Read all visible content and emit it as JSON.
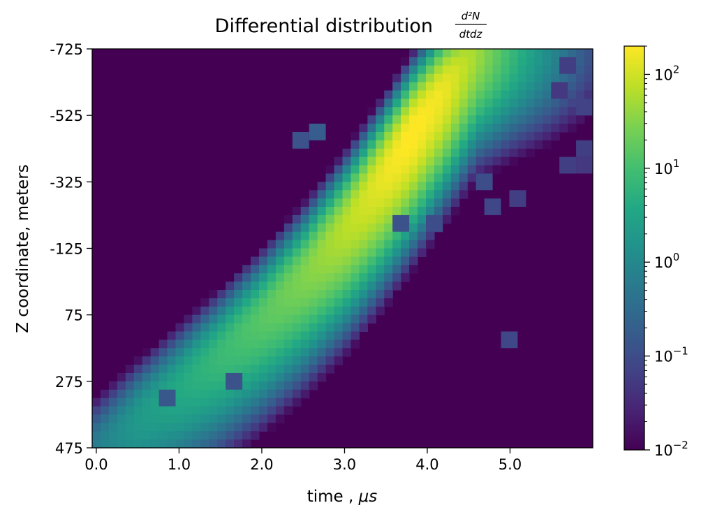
{
  "chart_data": {
    "type": "heatmap",
    "title": "Differential distribution",
    "title_fraction": {
      "numerator": "d²N",
      "denominator": "dtdz"
    },
    "xlabel_text": "time , ",
    "xlabel_unit": "μs",
    "ylabel": "Z coordinate, meters",
    "x_range": [
      -0.05,
      6.0
    ],
    "y_range": [
      -725,
      475
    ],
    "y_axis_inverted": true,
    "x_ticks": [
      {
        "value": 0.0,
        "label": "0.0"
      },
      {
        "value": 1.0,
        "label": "1.0"
      },
      {
        "value": 2.0,
        "label": "2.0"
      },
      {
        "value": 3.0,
        "label": "3.0"
      },
      {
        "value": 4.0,
        "label": "4.0"
      },
      {
        "value": 5.0,
        "label": "5.0"
      }
    ],
    "y_ticks": [
      {
        "value": -725,
        "label": "-725"
      },
      {
        "value": -525,
        "label": "-525"
      },
      {
        "value": -325,
        "label": "-325"
      },
      {
        "value": -125,
        "label": "-125"
      },
      {
        "value": 75,
        "label": "75"
      },
      {
        "value": 275,
        "label": "275"
      },
      {
        "value": 475,
        "label": "475"
      }
    ],
    "colorbar": {
      "colormap": "viridis",
      "scale": "log",
      "range": [
        0.01,
        200
      ],
      "ticks": [
        {
          "value": 0.01,
          "base": "10",
          "exp": "−2"
        },
        {
          "value": 0.1,
          "base": "10",
          "exp": "−1"
        },
        {
          "value": 1,
          "base": "10",
          "exp": "0"
        },
        {
          "value": 10,
          "base": "10",
          "exp": "1"
        },
        {
          "value": 100,
          "base": "10",
          "exp": "2"
        }
      ]
    },
    "grid": false,
    "background_color": "#440154",
    "ridge": [
      {
        "t": 0.0,
        "z": 480,
        "peak": 0.7
      },
      {
        "t": 0.5,
        "z": 385,
        "peak": 2
      },
      {
        "t": 1.0,
        "z": 290,
        "peak": 4
      },
      {
        "t": 1.5,
        "z": 190,
        "peak": 8
      },
      {
        "t": 2.0,
        "z": 80,
        "peak": 15
      },
      {
        "t": 2.5,
        "z": -45,
        "peak": 30
      },
      {
        "t": 3.0,
        "z": -190,
        "peak": 70
      },
      {
        "t": 3.5,
        "z": -360,
        "peak": 160
      },
      {
        "t": 3.8,
        "z": -470,
        "peak": 230
      },
      {
        "t": 4.2,
        "z": -600,
        "peak": 160
      },
      {
        "t": 4.6,
        "z": -720,
        "peak": 50
      },
      {
        "t": 5.0,
        "z": -725,
        "peak": 8
      },
      {
        "t": 5.5,
        "z": -725,
        "peak": 1
      },
      {
        "t": 6.0,
        "z": -725,
        "peak": 0.1
      }
    ],
    "outliers": [
      {
        "t": 4.95,
        "z": 125,
        "value": 0.08
      },
      {
        "t": 4.05,
        "z": -210,
        "value": 0.1
      },
      {
        "t": 3.6,
        "z": -210,
        "value": 0.12
      },
      {
        "t": 4.75,
        "z": -255,
        "value": 0.08
      },
      {
        "t": 4.6,
        "z": -340,
        "value": 0.1
      },
      {
        "t": 5.05,
        "z": -300,
        "value": 0.06
      },
      {
        "t": 5.6,
        "z": -385,
        "value": 0.06
      },
      {
        "t": 5.85,
        "z": -400,
        "value": 0.05
      },
      {
        "t": 5.85,
        "z": -445,
        "value": 0.06
      },
      {
        "t": 5.85,
        "z": -560,
        "value": 0.07
      },
      {
        "t": 5.55,
        "z": -620,
        "value": 0.05
      },
      {
        "t": 5.65,
        "z": -690,
        "value": 0.06
      },
      {
        "t": 2.4,
        "z": -470,
        "value": 0.12
      },
      {
        "t": 2.65,
        "z": -490,
        "value": 0.18
      },
      {
        "t": 0.8,
        "z": 315,
        "value": 0.15
      },
      {
        "t": 1.6,
        "z": 270,
        "value": 0.12
      }
    ]
  }
}
